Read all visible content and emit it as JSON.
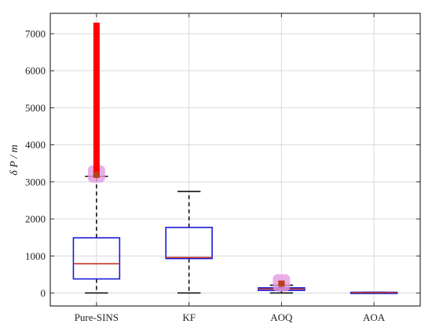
{
  "chart_data": {
    "type": "box",
    "title": "",
    "xlabel": "",
    "ylabel": "δ P / m",
    "ylim": [
      -350,
      7550
    ],
    "yticks": [
      0,
      1000,
      2000,
      3000,
      4000,
      5000,
      6000,
      7000
    ],
    "grid": true,
    "categories": [
      "Pure-SINS",
      "KF",
      "AOQ",
      "AOA"
    ],
    "boxes": [
      {
        "category": "Pure-SINS",
        "whisker_low": 0,
        "q1": 380,
        "median": 790,
        "q3": 1490,
        "whisker_high": 3150,
        "outliers_range": [
          3150,
          7300
        ]
      },
      {
        "category": "KF",
        "whisker_low": 0,
        "q1": 930,
        "median": 960,
        "q3": 1770,
        "whisker_high": 2740,
        "outliers_range": null
      },
      {
        "category": "AOQ",
        "whisker_low": 0,
        "q1": 70,
        "median": 110,
        "q3": 140,
        "whisker_high": 210,
        "outliers_range": [
          210,
          330
        ]
      },
      {
        "category": "AOA",
        "whisker_low": 0,
        "q1": 0,
        "median": 10,
        "q3": 20,
        "whisker_high": 20,
        "outliers_range": null
      }
    ],
    "colors": {
      "box": "#1a1adb",
      "median": "#c0392b",
      "whisker": "#111111",
      "outlier": "#ff0000",
      "outlier_halo": "#e39be3",
      "outlier_dot": "#b8401c"
    }
  }
}
